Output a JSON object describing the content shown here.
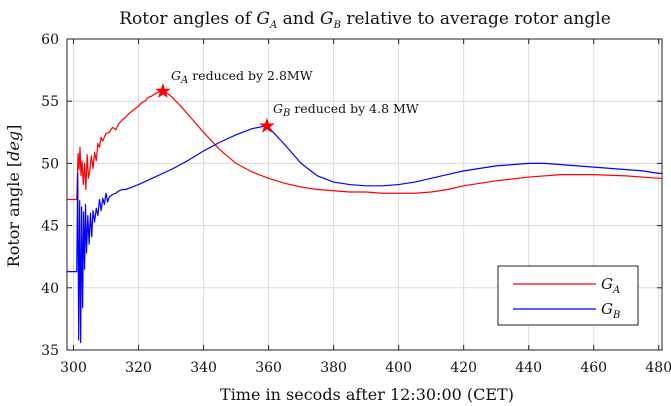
{
  "chart_data": {
    "type": "line",
    "title_parts": [
      "Rotor angles of ",
      "G",
      "A",
      " and ",
      "G",
      "B",
      " relative to average rotor angle"
    ],
    "xlabel": "Time in secods after 12:30:00 (CET)",
    "ylabel_parts": [
      "Rotor angle [",
      "deg",
      "]"
    ],
    "xlim": [
      298,
      481
    ],
    "ylim": [
      35,
      60
    ],
    "xticks": [
      300,
      320,
      340,
      360,
      380,
      400,
      420,
      440,
      460,
      480
    ],
    "yticks": [
      35,
      40,
      45,
      50,
      55,
      60
    ],
    "grid": true,
    "legend_position": "bottom-right",
    "colors": {
      "GA": "#ff0000",
      "GB": "#0000ff",
      "grid": "#dcdcdc",
      "axis": "#222222"
    },
    "series": [
      {
        "name_parts": [
          "G",
          "A"
        ],
        "color": "#ff0000",
        "x": [
          298,
          301,
          301.4,
          301.7,
          302,
          302.3,
          302.6,
          303,
          303.4,
          303.8,
          304.2,
          304.6,
          305,
          305.5,
          306,
          306.5,
          307,
          307.5,
          308,
          308.5,
          309,
          310,
          311,
          312,
          313,
          314,
          315,
          316,
          317,
          318,
          319,
          320,
          321,
          322,
          323,
          324,
          325,
          326,
          327,
          328,
          330,
          333,
          336,
          340,
          345,
          350,
          355,
          360,
          365,
          370,
          375,
          380,
          385,
          390,
          395,
          400,
          405,
          410,
          415,
          420,
          430,
          440,
          450,
          460,
          470,
          480,
          481
        ],
        "values": [
          47.1,
          47.1,
          50.8,
          49.5,
          51.3,
          49.0,
          50.2,
          48.3,
          50.0,
          47.9,
          50.7,
          48.8,
          49.4,
          50.6,
          49.6,
          50.9,
          50.2,
          51.6,
          51.3,
          52.1,
          51.8,
          52.4,
          52.5,
          52.9,
          52.7,
          53.2,
          53.5,
          53.7,
          54.0,
          54.2,
          54.4,
          54.6,
          54.9,
          55.0,
          55.3,
          55.4,
          55.6,
          55.7,
          55.8,
          55.8,
          55.4,
          54.6,
          53.7,
          52.5,
          51.1,
          50.0,
          49.3,
          48.8,
          48.4,
          48.1,
          47.9,
          47.8,
          47.7,
          47.7,
          47.6,
          47.6,
          47.6,
          47.7,
          47.9,
          48.2,
          48.6,
          48.9,
          49.1,
          49.1,
          49.0,
          48.8,
          48.8
        ]
      },
      {
        "name_parts": [
          "G",
          "B"
        ],
        "color": "#0000ff",
        "x": [
          298,
          301,
          301.3,
          301.6,
          301.9,
          302.2,
          302.5,
          302.8,
          303.1,
          303.4,
          303.7,
          304,
          304.4,
          304.8,
          305.2,
          305.6,
          306,
          306.5,
          307,
          307.5,
          308,
          308.5,
          309,
          309.5,
          310,
          310.5,
          311,
          311.5,
          312,
          313,
          314,
          315,
          316,
          318,
          320,
          325,
          330,
          335,
          340,
          345,
          350,
          355,
          359,
          360,
          365,
          370,
          375,
          380,
          385,
          390,
          395,
          400,
          405,
          410,
          415,
          420,
          425,
          430,
          435,
          440,
          445,
          450,
          455,
          460,
          465,
          470,
          475,
          480,
          481
        ],
        "values": [
          41.3,
          41.3,
          49.2,
          35.8,
          47.0,
          35.6,
          46.5,
          38.4,
          46.1,
          41.5,
          46.7,
          42.8,
          45.8,
          43.5,
          46.0,
          44.1,
          46.2,
          45.3,
          46.4,
          45.8,
          47.1,
          46.2,
          47.2,
          46.7,
          47.6,
          46.9,
          47.3,
          47.4,
          47.5,
          47.6,
          47.8,
          47.9,
          47.9,
          48.1,
          48.3,
          48.9,
          49.5,
          50.2,
          51.0,
          51.7,
          52.3,
          52.8,
          53.0,
          52.9,
          51.5,
          50.0,
          49.0,
          48.5,
          48.3,
          48.2,
          48.2,
          48.3,
          48.5,
          48.8,
          49.1,
          49.4,
          49.6,
          49.8,
          49.9,
          50.0,
          50.0,
          49.9,
          49.8,
          49.7,
          49.6,
          49.5,
          49.4,
          49.2,
          49.2
        ]
      }
    ],
    "markers": [
      {
        "series": "GA",
        "x": 327.5,
        "y": 55.8
      },
      {
        "series": "GB",
        "x": 359.5,
        "y": 53.0
      }
    ],
    "annotations": [
      {
        "x": 327.5,
        "y": 55.8,
        "parts": [
          "G",
          "A",
          " reduced by 2.8MW"
        ]
      },
      {
        "x": 359.5,
        "y": 53.0,
        "parts": [
          "G",
          "B",
          " reduced by 4.8 MW"
        ]
      }
    ]
  }
}
